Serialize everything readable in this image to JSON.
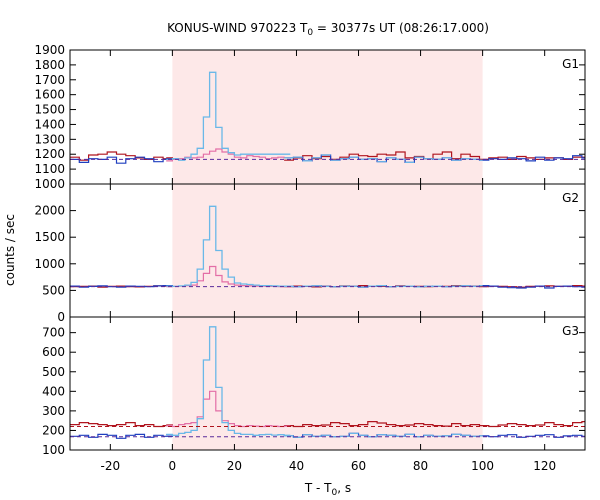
{
  "chart_data": {
    "type": "line",
    "title": "KONUS-WIND 970223 T",
    "title_sub": "0",
    "title_rest": " = 30377s UT (08:26:17.000)",
    "xlabel_main": "T - T",
    "xlabel_sub": "0",
    "xlabel_rest": ", s",
    "ylabel": "counts / sec",
    "xlim": [
      -33,
      133
    ],
    "xticks": [
      -20,
      0,
      20,
      40,
      60,
      80,
      100,
      120
    ],
    "shade_range": [
      0,
      100
    ],
    "colors": {
      "shade": "#fde8e8",
      "light_blue": "#6ab8e8",
      "dark_blue": "#1f3fbf",
      "dark_red": "#b0141e",
      "pink": "#e36ea6",
      "purple_dash": "#5a2a9a"
    },
    "panels": [
      {
        "label": "G1",
        "ylim": [
          1000,
          1900
        ],
        "yticks": [
          1000,
          1100,
          1200,
          1300,
          1400,
          1500,
          1600,
          1700,
          1800,
          1900
        ],
        "background_level": 1165,
        "high_res": {
          "x": [
            -2,
            0,
            2,
            4,
            6,
            8,
            10,
            12,
            14,
            16,
            18,
            20,
            22,
            24,
            26,
            28,
            30,
            32,
            34,
            36
          ],
          "blue": [
            1165,
            1170,
            1160,
            1175,
            1200,
            1240,
            1450,
            1750,
            1380,
            1240,
            1210,
            1195,
            1200,
            1200,
            1200,
            1200,
            1200,
            1200,
            1200,
            1200
          ],
          "red": [
            1155,
            1165,
            1170,
            1180,
            1175,
            1180,
            1200,
            1220,
            1235,
            1215,
            1200,
            1180,
            1175,
            1190,
            1185,
            1180,
            1170,
            1175,
            1180,
            1175
          ]
        },
        "low_res": {
          "x": [
            -33,
            -30,
            -27,
            -24,
            -21,
            -18,
            -15,
            -12,
            -9,
            -6,
            -3,
            0,
            36,
            39,
            42,
            45,
            48,
            51,
            54,
            57,
            60,
            63,
            66,
            69,
            72,
            75,
            78,
            81,
            84,
            87,
            90,
            93,
            96,
            99,
            102,
            105,
            108,
            111,
            114,
            117,
            120,
            123,
            126,
            129,
            132
          ],
          "blue": [
            1165,
            1145,
            1170,
            1165,
            1180,
            1140,
            1170,
            1180,
            1170,
            1150,
            1165,
            1170,
            1175,
            1180,
            1155,
            1175,
            1195,
            1160,
            1170,
            1180,
            1165,
            1170,
            1150,
            1175,
            1165,
            1145,
            1180,
            1170,
            1165,
            1175,
            1160,
            1170,
            1165,
            1160,
            1170,
            1165,
            1175,
            1170,
            1155,
            1180,
            1160,
            1175,
            1170,
            1190,
            1175
          ],
          "red": [
            1180,
            1160,
            1195,
            1200,
            1215,
            1200,
            1190,
            1175,
            1165,
            1180,
            1170,
            1175,
            1160,
            1175,
            1190,
            1170,
            1185,
            1165,
            1180,
            1200,
            1190,
            1185,
            1200,
            1195,
            1215,
            1175,
            1185,
            1170,
            1200,
            1215,
            1170,
            1200,
            1185,
            1165,
            1175,
            1180,
            1165,
            1185,
            1175,
            1165,
            1175,
            1175,
            1165,
            1180,
            1180
          ]
        }
      },
      {
        "label": "G2",
        "ylim": [
          0,
          2500
        ],
        "yticks": [
          0,
          500,
          1000,
          1500,
          2000
        ],
        "background_level": 570,
        "high_res": {
          "x": [
            -2,
            0,
            2,
            4,
            6,
            8,
            10,
            12,
            14,
            16,
            18,
            20,
            22,
            24,
            26,
            28,
            30,
            32,
            34,
            36
          ],
          "blue": [
            580,
            575,
            585,
            600,
            650,
            900,
            1450,
            2080,
            1250,
            900,
            750,
            640,
            620,
            610,
            600,
            590,
            590,
            585,
            580,
            575
          ],
          "red": [
            570,
            575,
            580,
            590,
            600,
            680,
            820,
            950,
            780,
            660,
            620,
            600,
            590,
            585,
            580,
            580,
            575,
            575,
            570,
            570
          ]
        },
        "low_res": {
          "x": [
            -33,
            -30,
            -27,
            -24,
            -21,
            -18,
            -15,
            -12,
            -9,
            -6,
            -3,
            0,
            36,
            39,
            42,
            45,
            48,
            51,
            54,
            57,
            60,
            63,
            66,
            69,
            72,
            75,
            78,
            81,
            84,
            87,
            90,
            93,
            96,
            99,
            102,
            105,
            108,
            111,
            114,
            117,
            120,
            123,
            126,
            129,
            132
          ],
          "blue": [
            580,
            560,
            575,
            585,
            570,
            560,
            580,
            575,
            570,
            585,
            590,
            580,
            575,
            570,
            580,
            585,
            575,
            570,
            580,
            575,
            560,
            580,
            590,
            570,
            575,
            580,
            565,
            575,
            580,
            570,
            580,
            585,
            575,
            590,
            580,
            560,
            550,
            545,
            560,
            580,
            545,
            575,
            580,
            570,
            560
          ],
          "red": [
            570,
            575,
            580,
            560,
            575,
            580,
            570,
            565,
            575,
            585,
            580,
            575,
            570,
            580,
            575,
            565,
            580,
            570,
            585,
            575,
            590,
            580,
            575,
            570,
            585,
            580,
            575,
            570,
            580,
            575,
            590,
            575,
            580,
            570,
            580,
            575,
            570,
            560,
            575,
            580,
            585,
            575,
            580,
            590,
            580
          ]
        }
      },
      {
        "label": "G3",
        "ylim": [
          100,
          780
        ],
        "yticks": [
          100,
          200,
          300,
          400,
          500,
          600,
          700
        ],
        "background_levels": [
          220,
          168
        ],
        "high_res": {
          "x": [
            -2,
            0,
            2,
            4,
            6,
            8,
            10,
            12,
            14,
            16,
            18,
            20,
            22,
            24,
            26,
            28,
            30,
            32,
            34,
            36
          ],
          "blue": [
            180,
            175,
            185,
            190,
            200,
            260,
            560,
            730,
            420,
            240,
            200,
            185,
            180,
            180,
            175,
            178,
            180,
            176,
            178,
            175
          ],
          "red": [
            225,
            220,
            230,
            235,
            240,
            270,
            360,
            400,
            300,
            250,
            235,
            225,
            220,
            225,
            222,
            220,
            225,
            222,
            220,
            222
          ]
        },
        "low_res": {
          "x": [
            -33,
            -30,
            -27,
            -24,
            -21,
            -18,
            -15,
            -12,
            -9,
            -6,
            -3,
            0,
            36,
            39,
            42,
            45,
            48,
            51,
            54,
            57,
            60,
            63,
            66,
            69,
            72,
            75,
            78,
            81,
            84,
            87,
            90,
            93,
            96,
            99,
            102,
            105,
            108,
            111,
            114,
            117,
            120,
            123,
            126,
            129,
            132
          ],
          "blue": [
            170,
            175,
            165,
            180,
            175,
            160,
            175,
            180,
            165,
            175,
            170,
            178,
            172,
            165,
            178,
            170,
            175,
            168,
            170,
            185,
            175,
            168,
            178,
            175,
            170,
            180,
            168,
            175,
            170,
            172,
            180,
            175,
            170,
            172,
            168,
            175,
            178,
            165,
            170,
            175,
            178,
            165,
            172,
            175,
            170
          ],
          "red": [
            230,
            240,
            235,
            230,
            225,
            230,
            240,
            225,
            230,
            220,
            225,
            228,
            225,
            220,
            230,
            225,
            228,
            240,
            235,
            225,
            230,
            245,
            238,
            230,
            225,
            228,
            235,
            230,
            225,
            222,
            235,
            225,
            230,
            225,
            220,
            228,
            235,
            230,
            225,
            228,
            240,
            230,
            225,
            240,
            245
          ]
        }
      }
    ]
  }
}
